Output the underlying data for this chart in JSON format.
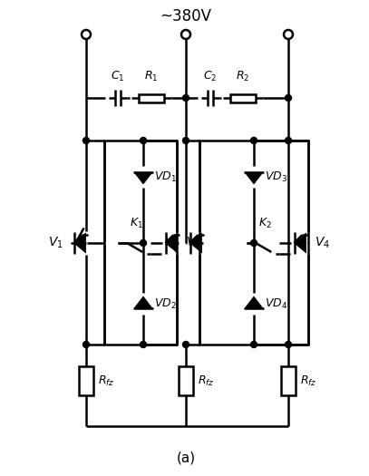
{
  "bg_color": "#ffffff",
  "lc": "#000000",
  "lw": 1.8,
  "title": "~380V",
  "caption": "(a)",
  "figw": 4.07,
  "figh": 5.25,
  "dpi": 100,
  "xL": 95,
  "xM": 205,
  "xR": 318,
  "yTerm": 38,
  "yRC": 108,
  "yBoxTop": 155,
  "yBoxBot": 380,
  "yVD1": 195,
  "yMid": 268,
  "yVD2": 335,
  "yRfz": 420,
  "yBot": 470,
  "yCaption": 505,
  "b1l": 115,
  "b1r": 195,
  "b2l": 220,
  "b2r": 340,
  "vd1x": 158,
  "vd2x": 158,
  "vd3x": 280,
  "vd4x": 280,
  "v1x": 87,
  "v2x": 188,
  "v3x": 215,
  "v4x": 330,
  "k1x": 148,
  "k2x": 290
}
